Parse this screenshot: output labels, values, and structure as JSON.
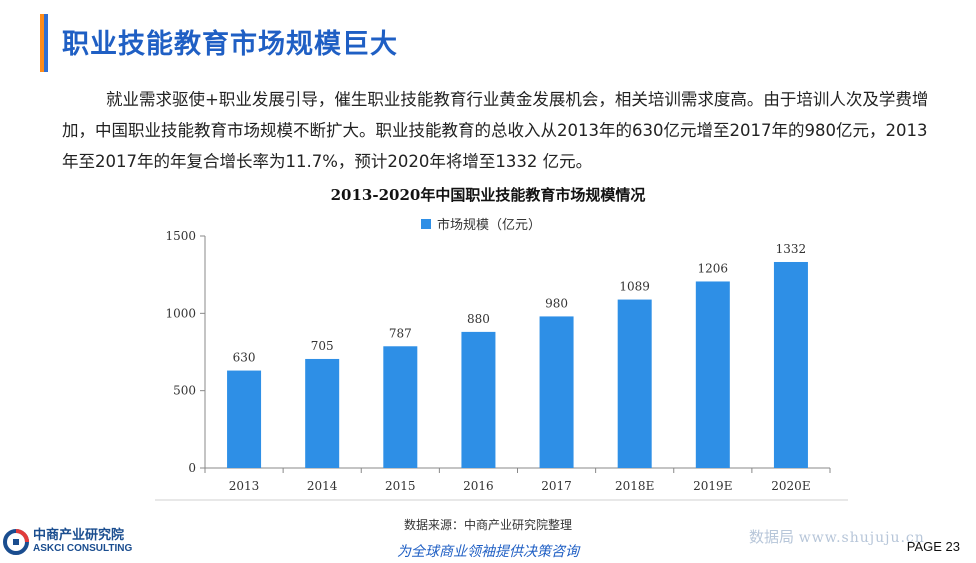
{
  "header": {
    "title": "职业技能教育市场规模巨大"
  },
  "intro": "就业需求驱使+职业发展引导，催生职业技能教育行业黄金发展机会，相关培训需求度高。由于培训人次及学费增加，中国职业技能教育市场规模不断扩大。职业技能教育的总收入从2013年的630亿元增至2017年的980亿元，2013年至2017年的年复合增长率为11.7%，预计2020年将增至1332 亿元。",
  "chart_data": {
    "type": "bar",
    "title": "2013-2020年中国职业技能教育市场规模情况",
    "categories": [
      "2013",
      "2014",
      "2015",
      "2016",
      "2017",
      "2018E",
      "2019E",
      "2020E"
    ],
    "series": [
      {
        "name": "市场规模（亿元）",
        "values": [
          630,
          705,
          787,
          880,
          980,
          1089,
          1206,
          1332
        ]
      }
    ],
    "ylim": [
      0,
      1500
    ],
    "yticks": [
      0,
      500,
      1000,
      1500
    ],
    "bar_color": "#2E8FE6",
    "legend_position": "top-center",
    "grid": false
  },
  "footer": {
    "source": "数据来源：中商产业研究院整理",
    "logo_cn": "中商产业研究院",
    "logo_en": "ASKCI CONSULTING",
    "slogan": "为全球商业领袖提供决策咨询",
    "watermark": "数据局",
    "watermark_url": "www.shujuju.cn",
    "page": "PAGE  23"
  }
}
